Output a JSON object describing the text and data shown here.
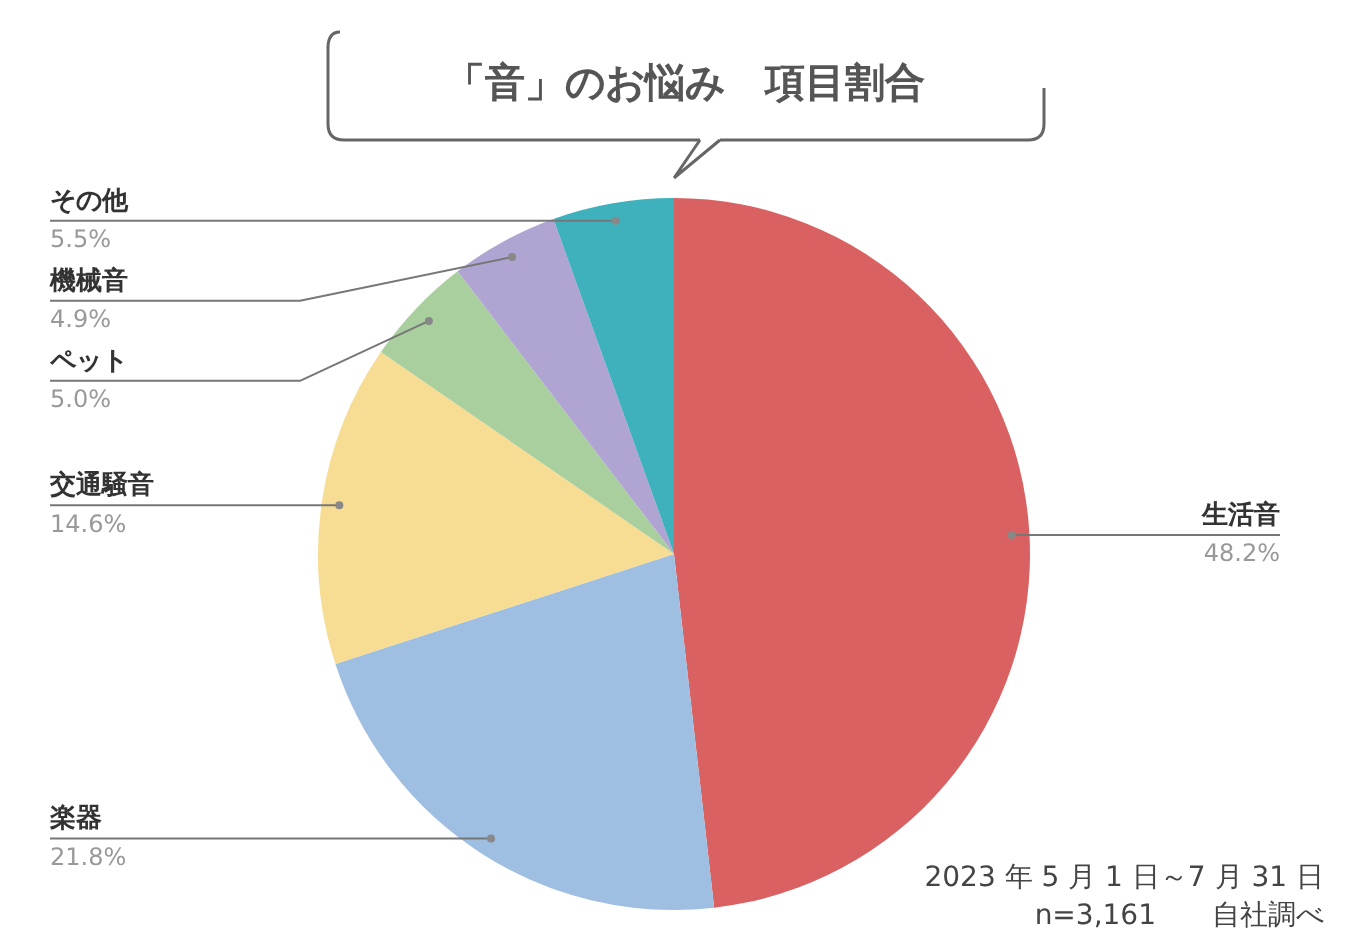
{
  "chart_data": {
    "type": "pie",
    "title": "「音」のお悩み　項目割合",
    "categories": [
      "生活音",
      "楽器",
      "交通騒音",
      "ペット",
      "機械音",
      "その他"
    ],
    "values": [
      48.2,
      21.8,
      14.6,
      5.0,
      4.9,
      5.5
    ],
    "value_labels": [
      "48.2%",
      "21.8%",
      "14.6%",
      "5.0%",
      "4.9%",
      "5.5%"
    ],
    "colors": [
      "#d96161",
      "#9ebfe1",
      "#f7dd94",
      "#aacf9f",
      "#b0a4d2",
      "#3fb1bc"
    ],
    "legend": false,
    "annotations": [
      "2023 年 5 月 1 日～7 月 31 日",
      "n=3,161　　自社調べ"
    ]
  }
}
